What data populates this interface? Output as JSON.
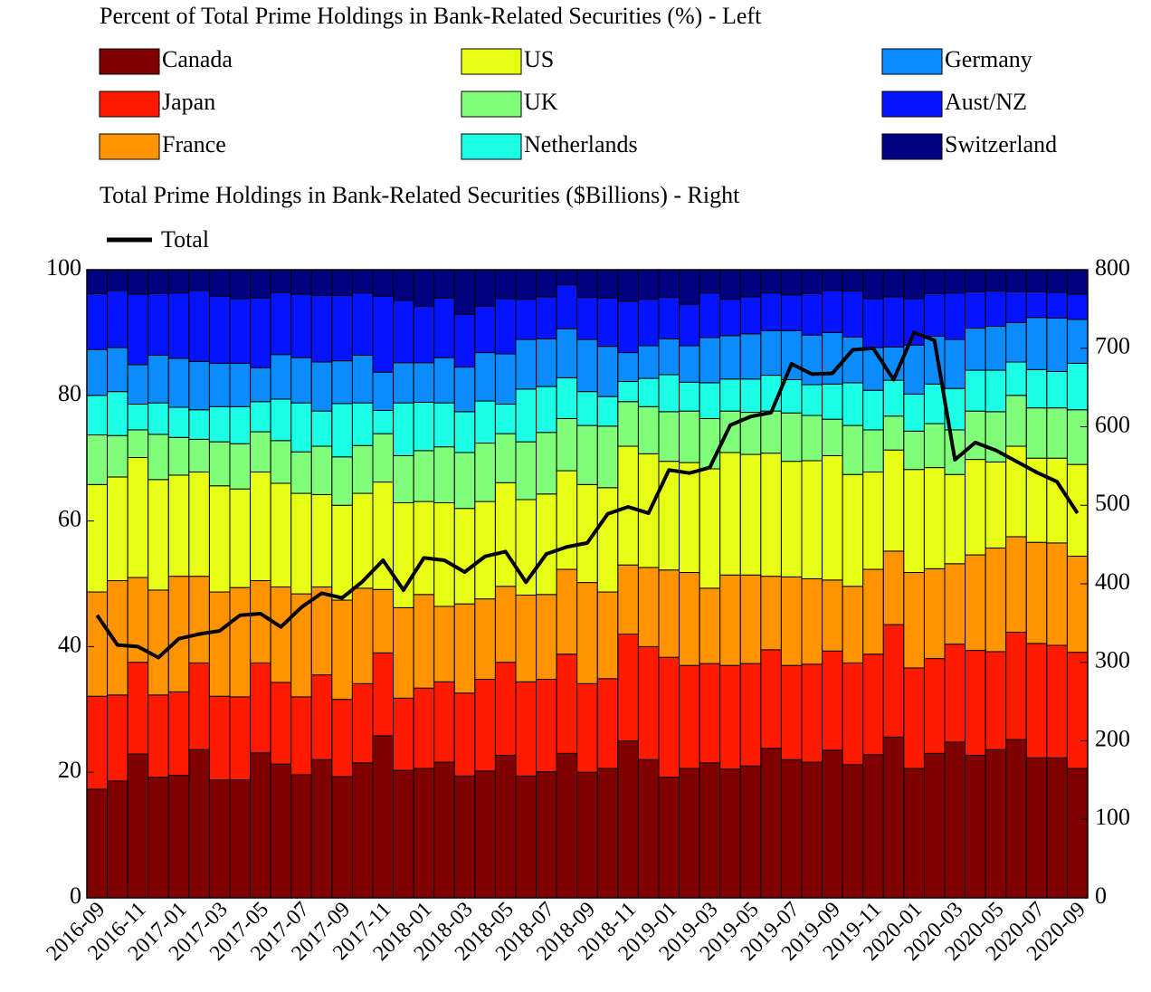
{
  "chart_data": {
    "type": "stacked_bar_line",
    "title": "Percent of Total Prime Holdings in Bank-Related Securities (%) - Left",
    "subtitle": "Total Prime Holdings in Bank-Related Securities ($Billions) - Right",
    "categories": [
      "2016-09",
      null,
      "2016-11",
      null,
      "2017-01",
      null,
      "2017-03",
      null,
      "2017-05",
      null,
      "2017-07",
      null,
      "2017-09",
      null,
      "2017-11",
      null,
      "2018-01",
      null,
      "2018-03",
      null,
      "2018-05",
      null,
      "2018-07",
      null,
      "2018-09",
      null,
      "2018-11",
      null,
      "2019-01",
      null,
      "2019-03",
      null,
      "2019-05",
      null,
      "2019-07",
      null,
      "2019-09",
      null,
      "2019-11",
      null,
      "2020-01",
      null,
      "2020-03",
      null,
      "2020-05",
      null,
      "2020-07",
      null,
      "2020-09"
    ],
    "ylim": [
      0,
      100
    ],
    "yticks": [
      0,
      20,
      40,
      60,
      80,
      100
    ],
    "y2lim": [
      0,
      800
    ],
    "y2ticks": [
      0,
      100,
      200,
      300,
      400,
      500,
      600,
      700,
      800
    ],
    "series": [
      {
        "name": "Canada",
        "color": "#800000",
        "values": [
          17.3,
          18.6,
          22.9,
          19.2,
          19.5,
          23.6,
          18.8,
          18.8,
          23.1,
          21.3,
          19.6,
          22.0,
          19.3,
          21.5,
          25.8,
          20.3,
          20.6,
          21.6,
          19.4,
          20.2,
          22.7,
          19.4,
          20.1,
          23.0,
          20.0,
          20.6,
          25.0,
          22.0,
          19.2,
          20.6,
          21.5,
          20.5,
          21.0,
          23.8,
          22.0,
          21.6,
          23.5,
          21.2,
          22.8,
          25.6,
          20.6,
          23.0,
          24.8,
          22.7,
          23.6,
          25.2,
          22.3,
          22.3,
          20.6
        ]
      },
      {
        "name": "Japan",
        "color": "#ff1a00",
        "values": [
          14.8,
          13.7,
          14.6,
          13.1,
          13.3,
          13.8,
          13.3,
          13.2,
          14.3,
          13.0,
          12.4,
          13.5,
          12.3,
          12.6,
          13.2,
          11.5,
          12.8,
          12.8,
          13.2,
          14.6,
          14.8,
          15.0,
          14.7,
          15.8,
          14.1,
          14.3,
          17.0,
          18.0,
          19.1,
          16.4,
          15.8,
          16.5,
          16.3,
          15.7,
          15.0,
          15.6,
          15.8,
          16.2,
          16.0,
          17.9,
          16.0,
          15.1,
          15.6,
          16.7,
          15.6,
          17.1,
          18.2,
          17.9,
          18.5
        ]
      },
      {
        "name": "France",
        "color": "#ff9400",
        "values": [
          16.6,
          18.2,
          13.5,
          16.7,
          18.4,
          13.8,
          16.6,
          17.4,
          13.1,
          15.2,
          16.4,
          14.0,
          15.8,
          15.2,
          10.1,
          14.4,
          14.9,
          12.0,
          14.2,
          12.8,
          12.1,
          13.8,
          13.5,
          13.5,
          16.1,
          13.8,
          11.0,
          12.6,
          13.9,
          14.8,
          12.0,
          14.4,
          14.1,
          11.7,
          14.1,
          13.6,
          11.3,
          12.2,
          13.5,
          11.7,
          15.2,
          14.3,
          12.8,
          15.2,
          16.5,
          15.2,
          16.1,
          16.3,
          15.3
        ]
      },
      {
        "name": "US",
        "color": "#e6ff14",
        "values": [
          17.1,
          16.5,
          19.1,
          17.6,
          16.1,
          16.6,
          16.9,
          15.7,
          17.3,
          16.5,
          16.0,
          14.7,
          15.1,
          15.1,
          17.1,
          16.7,
          14.8,
          16.5,
          15.2,
          15.5,
          16.5,
          15.2,
          16.0,
          15.7,
          15.6,
          16.6,
          18.9,
          18.1,
          17.3,
          17.5,
          19.0,
          19.5,
          19.2,
          19.6,
          18.4,
          18.8,
          19.8,
          17.8,
          15.5,
          16.1,
          16.4,
          16.1,
          14.2,
          15.2,
          13.7,
          14.4,
          13.4,
          13.5,
          14.6
        ]
      },
      {
        "name": "UK",
        "color": "#80ff7a",
        "values": [
          7.9,
          6.6,
          4.4,
          7.2,
          6.0,
          5.2,
          7.0,
          7.2,
          6.4,
          6.8,
          6.6,
          7.7,
          7.7,
          7.6,
          7.7,
          7.5,
          8.1,
          8.9,
          8.9,
          9.3,
          7.8,
          9.2,
          9.8,
          8.3,
          9.4,
          9.8,
          7.1,
          7.5,
          7.9,
          8.2,
          8.0,
          6.6,
          6.7,
          6.7,
          7.7,
          7.2,
          5.8,
          7.8,
          6.7,
          5.4,
          6.1,
          7.0,
          7.1,
          7.7,
          8.0,
          8.1,
          8.0,
          8.0,
          8.7
        ]
      },
      {
        "name": "Netherlands",
        "color": "#1affe6",
        "values": [
          6.3,
          7.0,
          4.1,
          5.0,
          4.8,
          4.7,
          5.6,
          5.9,
          4.8,
          6.6,
          7.8,
          5.6,
          8.5,
          6.8,
          3.7,
          8.4,
          7.7,
          7.0,
          6.5,
          6.7,
          4.7,
          8.4,
          7.3,
          6.5,
          5.4,
          4.7,
          3.2,
          4.5,
          5.9,
          4.6,
          5.7,
          5.1,
          5.3,
          5.7,
          5.3,
          4.9,
          5.6,
          6.8,
          6.3,
          5.7,
          5.9,
          6.3,
          6.6,
          6.5,
          6.6,
          5.3,
          6.1,
          5.8,
          7.4
        ]
      },
      {
        "name": "Germany",
        "color": "#0a8cff",
        "values": [
          7.3,
          7.0,
          6.3,
          7.6,
          7.8,
          7.7,
          6.9,
          6.9,
          5.4,
          7.1,
          7.2,
          7.8,
          6.8,
          7.6,
          6.1,
          6.4,
          6.3,
          7.2,
          7.1,
          7.7,
          8.0,
          7.9,
          7.6,
          7.8,
          8.3,
          8.0,
          4.6,
          5.2,
          5.7,
          5.8,
          7.2,
          6.9,
          7.2,
          7.1,
          7.8,
          7.9,
          8.2,
          7.3,
          6.8,
          5.3,
          7.8,
          7.6,
          7.8,
          6.7,
          7.0,
          6.3,
          8.3,
          8.5,
          7.0
        ]
      },
      {
        "name": "Aust/NZ",
        "color": "#0514ff",
        "values": [
          8.9,
          9.1,
          11.2,
          9.8,
          10.4,
          11.3,
          10.7,
          10.3,
          11.1,
          9.9,
          10.1,
          10.6,
          10.4,
          9.9,
          12.1,
          9.9,
          9.0,
          9.5,
          8.4,
          7.4,
          8.8,
          6.4,
          6.7,
          7.0,
          6.7,
          7.7,
          8.2,
          7.4,
          6.6,
          6.6,
          7.1,
          5.8,
          5.9,
          6.0,
          5.7,
          6.6,
          6.7,
          7.3,
          7.8,
          8.0,
          7.4,
          6.8,
          7.4,
          5.8,
          5.6,
          4.9,
          4.1,
          4.1,
          4.0
        ]
      },
      {
        "name": "Switzerland",
        "color": "#000080",
        "values": [
          3.8,
          3.3,
          3.9,
          3.8,
          3.7,
          3.3,
          4.2,
          4.6,
          4.5,
          3.6,
          3.9,
          4.1,
          4.1,
          3.7,
          4.2,
          4.9,
          5.8,
          4.5,
          7.1,
          5.8,
          4.6,
          4.7,
          4.3,
          2.4,
          4.4,
          4.5,
          5.0,
          4.7,
          4.4,
          5.5,
          3.7,
          4.7,
          4.3,
          3.7,
          4.0,
          3.8,
          3.3,
          3.4,
          4.6,
          4.3,
          4.6,
          3.8,
          3.7,
          3.5,
          3.4,
          3.5,
          3.5,
          3.6,
          3.9
        ]
      },
      {
        "name": "Total",
        "color": "#000000",
        "axis": "y2",
        "values": [
          360,
          322,
          320,
          306,
          330,
          336,
          340,
          360,
          362,
          345,
          370,
          388,
          382,
          403,
          430,
          392,
          433,
          430,
          415,
          435,
          441,
          402,
          438,
          447,
          452,
          489,
          498,
          490,
          545,
          541,
          548,
          602,
          613,
          618,
          680,
          667,
          668,
          698,
          700,
          660,
          720,
          710,
          558,
          580,
          570,
          556,
          542,
          530,
          490
        ]
      }
    ]
  }
}
